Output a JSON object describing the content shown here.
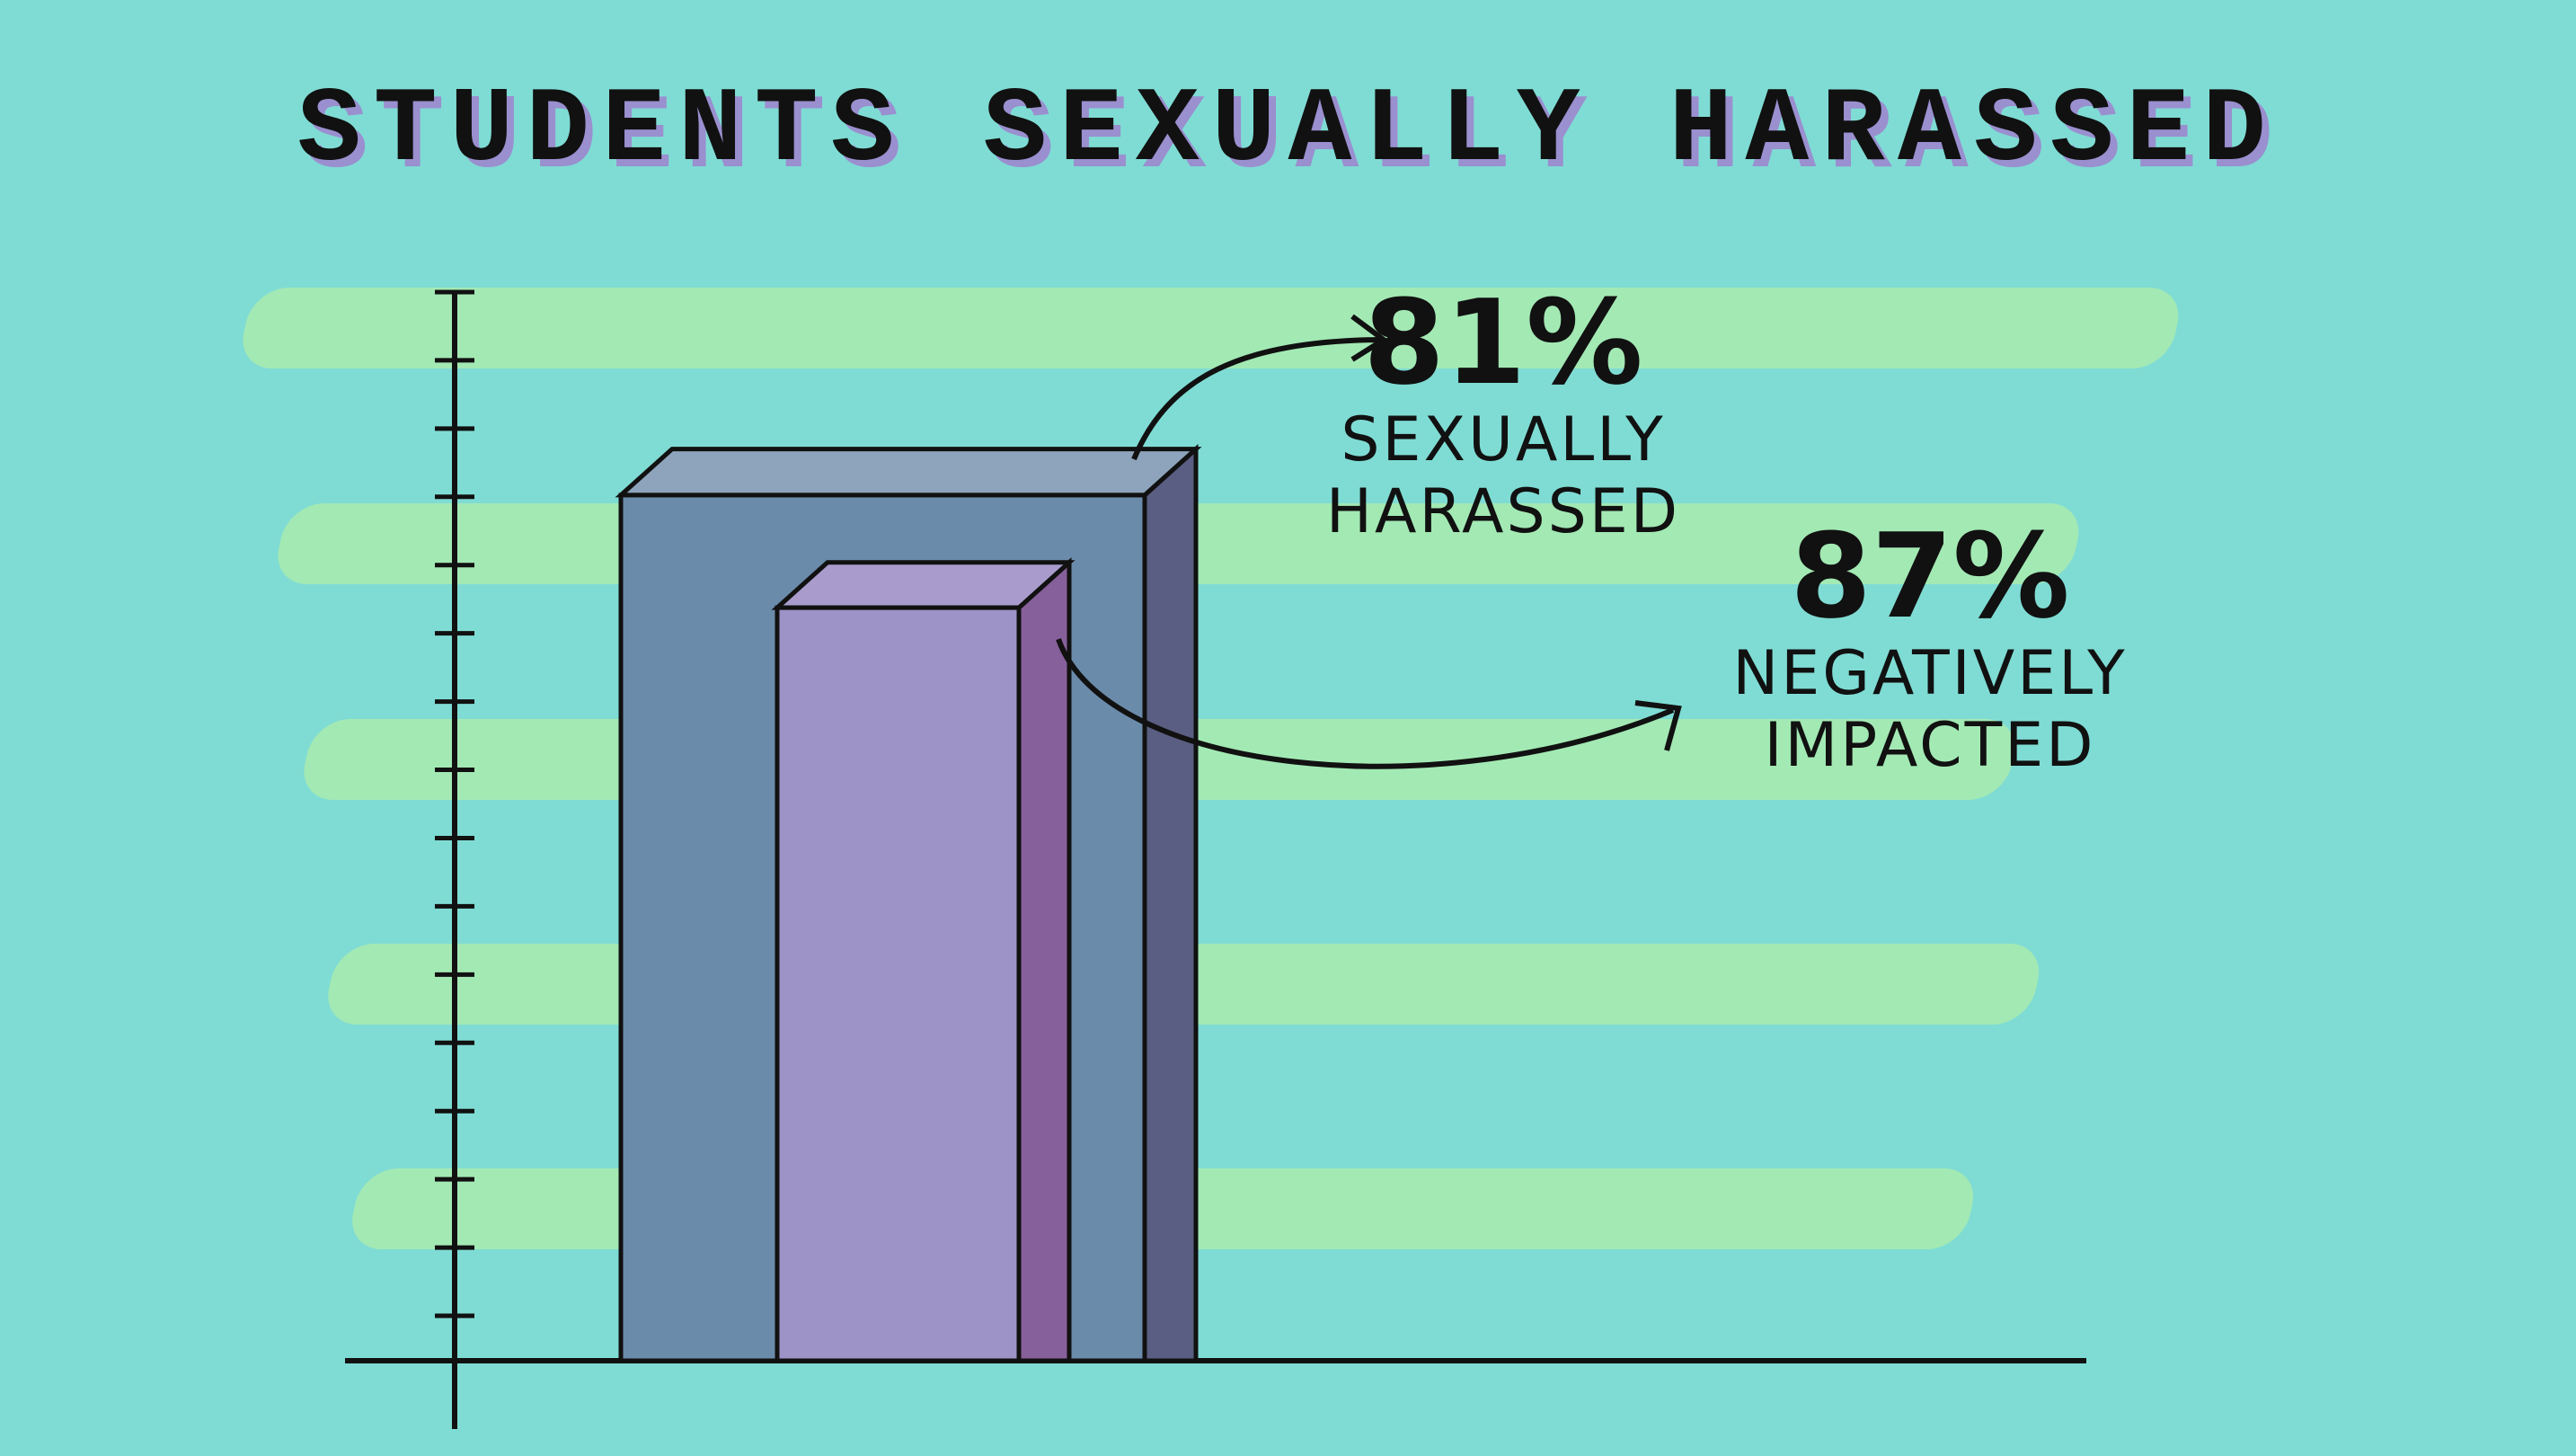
{
  "chart_data": {
    "type": "nested-bar",
    "title": "STUDENTS SEXUALLY HARASSED",
    "categories": [
      "SEXUALLY HARASSED",
      "NEGATIVELY IMPACTED"
    ],
    "values": [
      81,
      87
    ],
    "value_labels": [
      "81%",
      "87%"
    ],
    "colors": [
      "#6b8bab",
      "#9d93c6"
    ],
    "ylim": [
      0,
      100
    ]
  }
}
